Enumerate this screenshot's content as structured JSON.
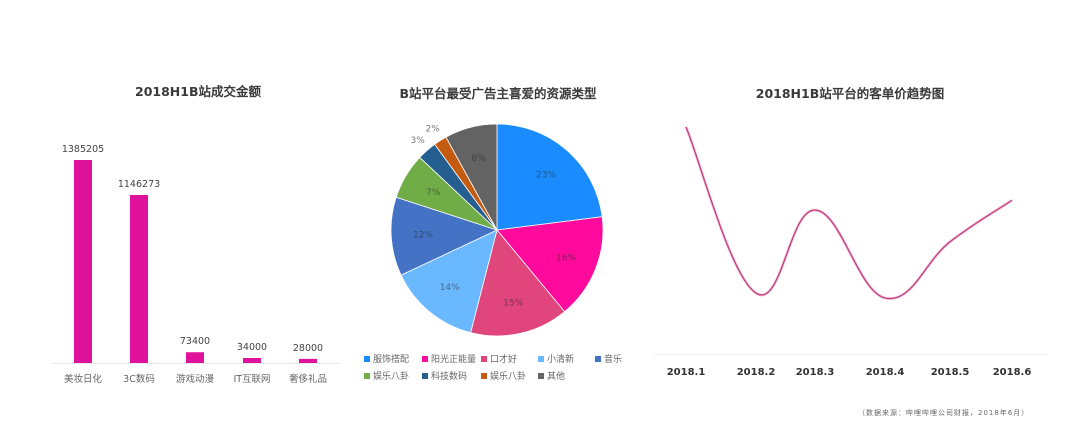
{
  "charts": {
    "bar": {
      "title": "2018H1B站成交金额"
    },
    "pie": {
      "title": "B站平台最受广告主喜爱的资源类型"
    },
    "line": {
      "title": "2018H1B站平台的客单价趋势图"
    }
  },
  "source_note": "（数据来源：哔哩哔哩公司财报，2018年6月）",
  "chart_data": [
    {
      "type": "bar",
      "title": "2018H1B站成交金额",
      "categories": [
        "美妆日化",
        "3C数码",
        "游戏动漫",
        "IT互联网",
        "奢侈礼品"
      ],
      "values": [
        1385205,
        1146273,
        73400,
        34000,
        28000
      ],
      "value_labels": [
        "1385205",
        "1146273",
        "73400",
        "34000",
        "28000"
      ],
      "xlabel": "",
      "ylabel": "",
      "ylim": [
        0,
        1400000
      ],
      "grid": false,
      "color": "#e0119a"
    },
    {
      "type": "pie",
      "title": "B站平台最受广告主喜爱的资源类型",
      "labels": [
        "服饰搭配",
        "阳光正能量",
        "口才好",
        "小清新",
        "音乐",
        "娱乐八卦",
        "科技数码",
        "娱乐八卦",
        "其他"
      ],
      "values": [
        23,
        16,
        15,
        14,
        12,
        7,
        3,
        2,
        8
      ],
      "value_labels": [
        "23%",
        "16%",
        "15%",
        "14%",
        "12%",
        "7%",
        "3%",
        "2%",
        "8%"
      ],
      "colors": [
        "#1a8cff",
        "#ff0a9c",
        "#e0457b",
        "#6ab8ff",
        "#4472c4",
        "#70ad47",
        "#255e91",
        "#c55a11",
        "#636363"
      ],
      "legend_position": "bottom"
    },
    {
      "type": "line",
      "title": "2018H1B站平台的客单价趋势图",
      "x": [
        "2018.1",
        "2018.2",
        "2018.3",
        "2018.4",
        "2018.5",
        "2018.6"
      ],
      "series": [
        {
          "name": "客单价",
          "values": [
            100,
            32,
            66,
            30,
            53,
            70
          ]
        }
      ],
      "note": "y-axis unlabeled; values are relative curve heights (0-100 scale)",
      "smooth": true,
      "grid": false,
      "color": "#c0427f"
    }
  ]
}
